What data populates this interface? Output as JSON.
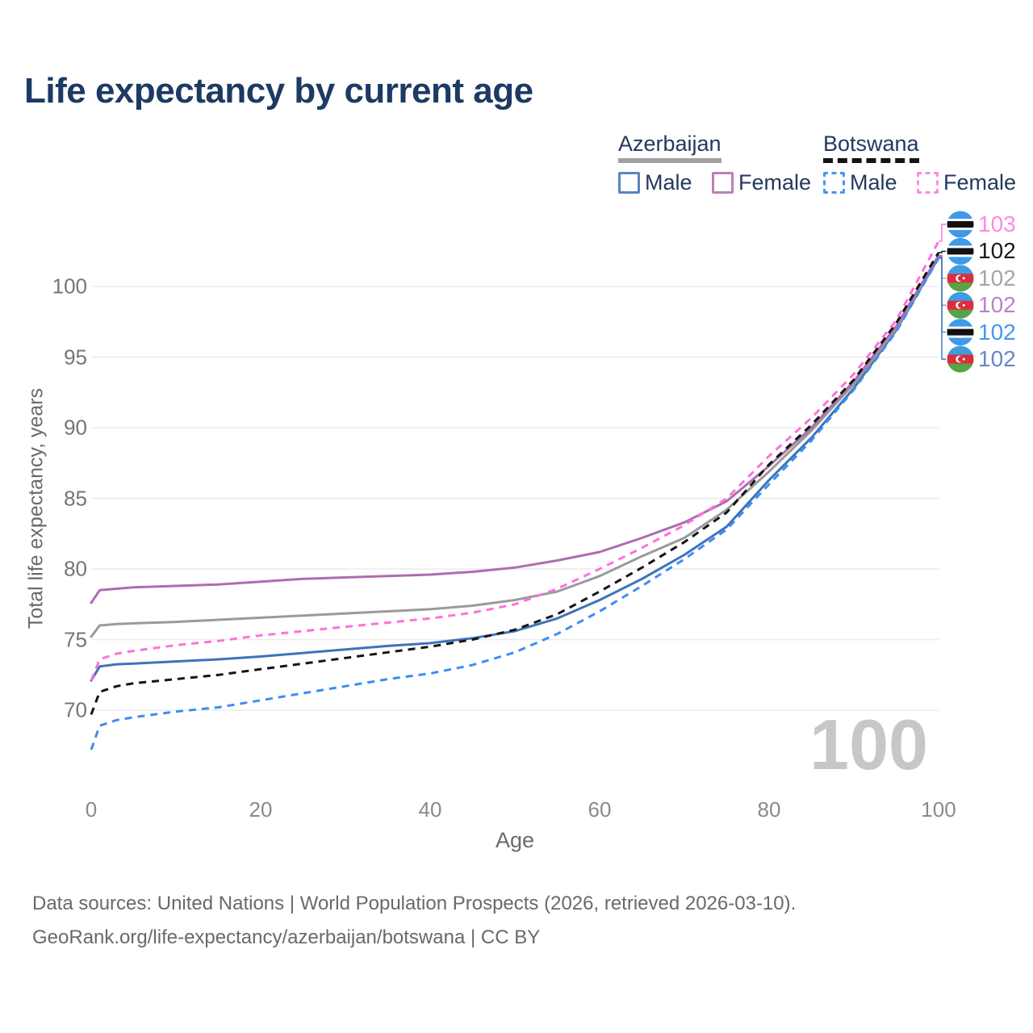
{
  "title": "Life expectancy by current age",
  "legend": {
    "groups": [
      {
        "country": "Azerbaijan",
        "line_style": "solid",
        "items": [
          {
            "label": "Male",
            "color": "#5b84c0",
            "dashed": false
          },
          {
            "label": "Female",
            "color": "#bb7fba",
            "dashed": false
          }
        ]
      },
      {
        "country": "Botswana",
        "line_style": "dashed",
        "items": [
          {
            "label": "Male",
            "color": "#4596f5",
            "dashed": true
          },
          {
            "label": "Female",
            "color": "#ff8ae2",
            "dashed": true
          }
        ]
      }
    ]
  },
  "watermark": {
    "text": "100"
  },
  "footer": {
    "line1": "Data sources: United Nations | World Population Prospects (2026, retrieved 2026-03-10).",
    "line2": "GeoRank.org/life-expectancy/azerbaijan/botswana | CC BY"
  },
  "chart_data": {
    "type": "line",
    "title": "Life expectancy by current age",
    "xlabel": "Age",
    "ylabel": "Total life expectancy, years",
    "xlim": [
      0,
      100
    ],
    "ylim": [
      67,
      104
    ],
    "x_ticks": [
      0,
      20,
      40,
      60,
      80,
      100
    ],
    "y_ticks": [
      70,
      75,
      80,
      85,
      90,
      95,
      100
    ],
    "grid": "horizontal",
    "legend_position": "top-right",
    "ages": [
      0,
      1,
      3,
      5,
      10,
      15,
      20,
      25,
      30,
      35,
      40,
      45,
      50,
      55,
      60,
      65,
      70,
      75,
      80,
      85,
      90,
      95,
      100
    ],
    "series": [
      {
        "name": "Azerbaijan Male",
        "country": "Azerbaijan",
        "sex": "Male",
        "color": "#3c74b9",
        "dash": "solid",
        "flag": "azerbaijan",
        "end_label": "102",
        "end_label_color": "#6488c8",
        "label_row": 5,
        "values": [
          72.1,
          73.1,
          73.25,
          73.3,
          73.45,
          73.6,
          73.8,
          74.05,
          74.3,
          74.55,
          74.75,
          75.1,
          75.6,
          76.5,
          77.8,
          79.3,
          81.0,
          83.0,
          86.3,
          89.3,
          92.8,
          96.9,
          102.05
        ]
      },
      {
        "name": "Azerbaijan All",
        "country": "Azerbaijan",
        "sex": "Both",
        "color": "#9a9a9a",
        "dash": "solid",
        "flag": "azerbaijan",
        "end_label": "102",
        "end_label_color": "#a6a6a6",
        "label_row": 2,
        "values": [
          75.2,
          76.0,
          76.1,
          76.15,
          76.25,
          76.4,
          76.55,
          76.7,
          76.85,
          77.0,
          77.15,
          77.4,
          77.8,
          78.4,
          79.5,
          80.9,
          82.2,
          84.2,
          86.9,
          89.8,
          93.1,
          97.0,
          102.15
        ]
      },
      {
        "name": "Azerbaijan Female",
        "country": "Azerbaijan",
        "sex": "Female",
        "color": "#ad6db0",
        "dash": "solid",
        "flag": "azerbaijan",
        "end_label": "102",
        "end_label_color": "#b983c9",
        "label_row": 3,
        "values": [
          77.6,
          78.5,
          78.6,
          78.7,
          78.8,
          78.9,
          79.1,
          79.3,
          79.4,
          79.5,
          79.6,
          79.8,
          80.1,
          80.6,
          81.2,
          82.2,
          83.3,
          84.8,
          87.3,
          90.0,
          93.3,
          97.2,
          102.2
        ]
      },
      {
        "name": "Botswana Male",
        "country": "Botswana",
        "sex": "Male",
        "color": "#3d8df5",
        "dash": "dashed",
        "flag": "botswana",
        "end_label": "102",
        "end_label_color": "#4596f5",
        "label_row": 4,
        "values": [
          67.2,
          68.9,
          69.3,
          69.5,
          69.9,
          70.2,
          70.7,
          71.2,
          71.7,
          72.2,
          72.6,
          73.2,
          74.1,
          75.4,
          77.0,
          78.8,
          80.7,
          82.8,
          86.0,
          89.1,
          92.7,
          96.8,
          102.0
        ]
      },
      {
        "name": "Botswana All",
        "country": "Botswana",
        "sex": "Both",
        "color": "#141414",
        "dash": "dashed",
        "flag": "botswana",
        "end_label": "102",
        "end_label_color": "#1a1a1a",
        "label_row": 1,
        "values": [
          69.7,
          71.3,
          71.7,
          71.9,
          72.2,
          72.5,
          72.9,
          73.3,
          73.7,
          74.1,
          74.5,
          75.0,
          75.7,
          76.8,
          78.4,
          80.1,
          81.9,
          84.0,
          87.4,
          90.2,
          93.4,
          97.4,
          102.4
        ]
      },
      {
        "name": "Botswana Female",
        "country": "Botswana",
        "sex": "Female",
        "color": "#ff70dd",
        "dash": "dashed",
        "flag": "botswana",
        "end_label": "103",
        "end_label_color": "#fc8ae4",
        "label_row": 0,
        "values": [
          72.1,
          73.6,
          74.0,
          74.2,
          74.6,
          74.9,
          75.3,
          75.6,
          75.9,
          76.2,
          76.5,
          76.9,
          77.5,
          78.6,
          80.0,
          81.5,
          83.1,
          85.0,
          88.0,
          90.7,
          93.8,
          97.6,
          103.2
        ]
      }
    ]
  }
}
